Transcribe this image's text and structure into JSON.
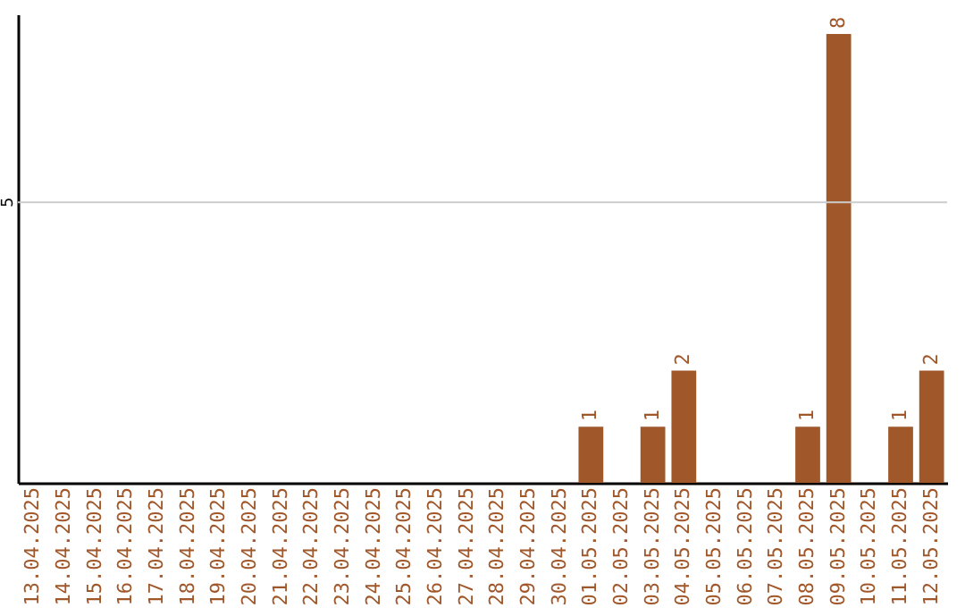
{
  "chart_data": {
    "type": "bar",
    "categories": [
      "13.04.2025",
      "14.04.2025",
      "15.04.2025",
      "16.04.2025",
      "17.04.2025",
      "18.04.2025",
      "19.04.2025",
      "20.04.2025",
      "21.04.2025",
      "22.04.2025",
      "23.04.2025",
      "24.04.2025",
      "25.04.2025",
      "26.04.2025",
      "27.04.2025",
      "28.04.2025",
      "29.04.2025",
      "30.04.2025",
      "01.05.2025",
      "02.05.2025",
      "03.05.2025",
      "04.05.2025",
      "05.05.2025",
      "06.05.2025",
      "07.05.2025",
      "08.05.2025",
      "09.05.2025",
      "10.05.2025",
      "11.05.2025",
      "12.05.2025"
    ],
    "values": [
      null,
      null,
      null,
      null,
      null,
      null,
      null,
      null,
      null,
      null,
      null,
      null,
      null,
      null,
      null,
      null,
      null,
      null,
      1,
      null,
      1,
      2,
      null,
      null,
      null,
      1,
      8,
      null,
      1,
      2
    ],
    "value_labels": [
      null,
      null,
      null,
      null,
      null,
      null,
      null,
      null,
      null,
      null,
      null,
      null,
      null,
      null,
      null,
      null,
      null,
      null,
      "1",
      null,
      "1",
      "2",
      null,
      null,
      null,
      "1",
      "8",
      null,
      "1",
      "2"
    ],
    "color": "#a0572a",
    "ylim": [
      0,
      8.35
    ],
    "ref_lines": [
      {
        "axis": "y",
        "value": 5,
        "label": "5",
        "color": "#cccccc"
      }
    ]
  }
}
